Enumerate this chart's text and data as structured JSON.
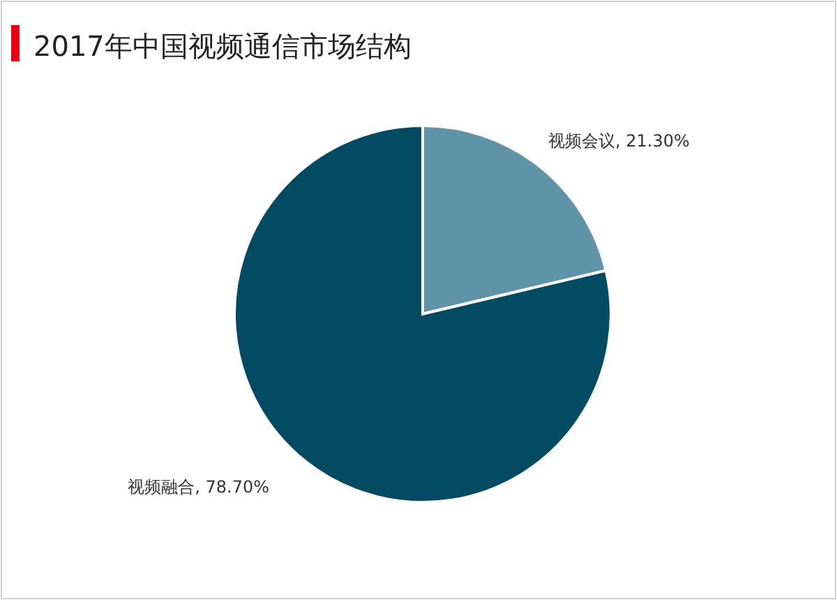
{
  "chart_data": {
    "type": "pie",
    "title": "2017年中国视频通信市场结构",
    "categories": [
      "视频会议",
      "视频融合"
    ],
    "values": [
      21.3,
      78.7
    ],
    "value_labels": [
      "21.30%",
      "78.70%"
    ],
    "colors": [
      "#5f93a8",
      "#034b63"
    ],
    "legend": false
  }
}
